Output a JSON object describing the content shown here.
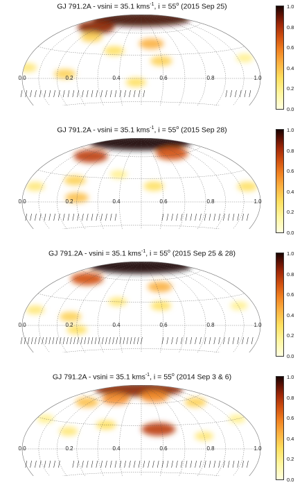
{
  "chart_data": [
    {
      "type": "heatmap",
      "title_main": "GJ 791.2A - vsini = 35.1 kms",
      "title_unit_sup": "-1",
      "title_incl": ", i = 55",
      "title_deg_sup": "o",
      "title_tail": " (2015 Sep 25)",
      "phase_ticks": [
        "0.0",
        "0.2",
        "0.4",
        "0.6",
        "0.8",
        "1.0"
      ],
      "colorbar_ticks": [
        "1.0",
        "0.8",
        "0.6",
        "0.4",
        "0.2",
        "0.0"
      ],
      "spots": [
        {
          "lon": 0.5,
          "lat": 82,
          "value": 0.95
        },
        {
          "lon": 0.15,
          "lat": 62,
          "value": 0.85
        },
        {
          "lon": 0.22,
          "lat": 50,
          "value": 0.35
        },
        {
          "lon": 0.55,
          "lat": 45,
          "value": 0.45
        },
        {
          "lon": 0.58,
          "lat": 22,
          "value": 0.35
        },
        {
          "lon": 0.38,
          "lat": 35,
          "value": 0.3
        },
        {
          "lon": 0.2,
          "lat": 5,
          "value": 0.35
        },
        {
          "lon": 0.48,
          "lat": -5,
          "value": 0.3
        },
        {
          "lon": 0.02,
          "lat": 10,
          "value": 0.25
        },
        {
          "lon": 0.95,
          "lat": 20,
          "value": 0.2
        }
      ],
      "obs_phases": [
        0.0,
        0.02,
        0.04,
        0.06,
        0.08,
        0.1,
        0.12,
        0.14,
        0.16,
        0.18,
        0.2,
        0.22,
        0.24,
        0.26,
        0.28,
        0.3,
        0.32,
        0.34,
        0.36,
        0.38,
        0.4,
        0.42,
        0.44,
        0.46,
        0.48,
        0.5,
        0.52,
        0.87,
        0.89,
        0.91,
        0.93,
        0.95,
        0.97
      ]
    },
    {
      "type": "heatmap",
      "title_main": "GJ 791.2A - vsini = 35.1 kms",
      "title_unit_sup": "-1",
      "title_incl": ", i = 55",
      "title_deg_sup": "o",
      "title_tail": " (2015 Sep 28)",
      "phase_ticks": [
        "0.0",
        "0.2",
        "0.4",
        "0.6",
        "0.8",
        "1.0"
      ],
      "colorbar_ticks": [
        "1.0",
        "0.8",
        "0.6",
        "0.4",
        "0.2",
        "0.0"
      ],
      "spots": [
        {
          "lon": 0.48,
          "lat": 82,
          "value": 1.0
        },
        {
          "lon": 0.18,
          "lat": 55,
          "value": 0.75
        },
        {
          "lon": 0.72,
          "lat": 62,
          "value": 0.7
        },
        {
          "lon": 0.22,
          "lat": 25,
          "value": 0.35
        },
        {
          "lon": 0.25,
          "lat": 5,
          "value": 0.4
        },
        {
          "lon": 0.55,
          "lat": 20,
          "value": 0.3
        },
        {
          "lon": 0.95,
          "lat": 15,
          "value": 0.3
        },
        {
          "lon": 0.05,
          "lat": 15,
          "value": 0.25
        },
        {
          "lon": 0.4,
          "lat": 35,
          "value": 0.2
        }
      ],
      "obs_phases": [
        0.02,
        0.04,
        0.06,
        0.08,
        0.1,
        0.12,
        0.14,
        0.16,
        0.18,
        0.2,
        0.22,
        0.24,
        0.26,
        0.28,
        0.3,
        0.32,
        0.34,
        0.36,
        0.38,
        0.4,
        0.6,
        0.62,
        0.64,
        0.66,
        0.68,
        0.7,
        0.72,
        0.74,
        0.76,
        0.78,
        0.8,
        0.82,
        0.84,
        0.86,
        0.88,
        0.9,
        0.92,
        0.94,
        0.96
      ]
    },
    {
      "type": "heatmap",
      "title_main": "GJ 791.2A - vsini = 35.1 kms",
      "title_unit_sup": "-1",
      "title_incl": ", i = 55",
      "title_deg_sup": "o",
      "title_tail": " (2015 Sep 25 & 28)",
      "phase_ticks": [
        "0.0",
        "0.2",
        "0.4",
        "0.6",
        "0.8",
        "1.0"
      ],
      "colorbar_ticks": [
        "1.0",
        "0.8",
        "0.6",
        "0.4",
        "0.2",
        "0.0"
      ],
      "spots": [
        {
          "lon": 0.48,
          "lat": 82,
          "value": 1.0
        },
        {
          "lon": 0.15,
          "lat": 55,
          "value": 0.7
        },
        {
          "lon": 0.6,
          "lat": 50,
          "value": 0.45
        },
        {
          "lon": 0.22,
          "lat": 10,
          "value": 0.35
        },
        {
          "lon": 0.25,
          "lat": -5,
          "value": 0.3
        },
        {
          "lon": 0.58,
          "lat": 25,
          "value": 0.3
        },
        {
          "lon": 0.4,
          "lat": 30,
          "value": 0.25
        },
        {
          "lon": 0.05,
          "lat": 15,
          "value": 0.25
        },
        {
          "lon": 0.92,
          "lat": 20,
          "value": 0.2
        }
      ],
      "obs_phases": [
        0.0,
        0.015,
        0.03,
        0.045,
        0.06,
        0.075,
        0.09,
        0.105,
        0.12,
        0.135,
        0.15,
        0.165,
        0.18,
        0.195,
        0.21,
        0.225,
        0.24,
        0.255,
        0.27,
        0.285,
        0.3,
        0.315,
        0.33,
        0.345,
        0.36,
        0.375,
        0.39,
        0.405,
        0.42,
        0.435,
        0.45,
        0.465,
        0.48,
        0.495,
        0.51,
        0.6,
        0.62,
        0.64,
        0.66,
        0.68,
        0.7,
        0.72,
        0.74,
        0.76,
        0.78,
        0.8,
        0.82,
        0.84,
        0.86,
        0.88,
        0.9,
        0.92,
        0.94,
        0.96,
        0.98
      ]
    },
    {
      "type": "heatmap",
      "title_main": "GJ 791.2A - vsini = 35.1 kms",
      "title_unit_sup": "-1",
      "title_incl": ", i = 55",
      "title_deg_sup": "o",
      "title_tail": " (2014 Sep 3 & 6)",
      "phase_ticks": [
        "0.0",
        "0.2",
        "0.4",
        "0.6",
        "0.8",
        "1.0"
      ],
      "colorbar_ticks": [
        "1.0",
        "0.8",
        "0.6",
        "0.4",
        "0.2",
        "0.0"
      ],
      "spots": [
        {
          "lon": 0.45,
          "lat": 82,
          "value": 0.85
        },
        {
          "lon": 0.3,
          "lat": 65,
          "value": 0.55
        },
        {
          "lon": 0.62,
          "lat": 70,
          "value": 0.55
        },
        {
          "lon": 0.15,
          "lat": 55,
          "value": 0.4
        },
        {
          "lon": 0.85,
          "lat": 55,
          "value": 0.35
        },
        {
          "lon": 0.57,
          "lat": 25,
          "value": 0.75
        },
        {
          "lon": 0.35,
          "lat": 30,
          "value": 0.3
        },
        {
          "lon": 0.2,
          "lat": 20,
          "value": 0.25
        },
        {
          "lon": 0.75,
          "lat": 15,
          "value": 0.25
        },
        {
          "lon": 0.95,
          "lat": 30,
          "value": 0.2
        },
        {
          "lon": 0.05,
          "lat": 30,
          "value": 0.2
        }
      ],
      "obs_phases": [
        0.02,
        0.04,
        0.06,
        0.08,
        0.1,
        0.12,
        0.14,
        0.16,
        0.22,
        0.24,
        0.26,
        0.28,
        0.3,
        0.32,
        0.34,
        0.36,
        0.38,
        0.4,
        0.42,
        0.44,
        0.46,
        0.48,
        0.5,
        0.52,
        0.54,
        0.56,
        0.58,
        0.6,
        0.62,
        0.64,
        0.66,
        0.68,
        0.7,
        0.72,
        0.74,
        0.76,
        0.78,
        0.8,
        0.82,
        0.84,
        0.86,
        0.88,
        0.9,
        0.92,
        0.94,
        0.96
      ]
    }
  ]
}
